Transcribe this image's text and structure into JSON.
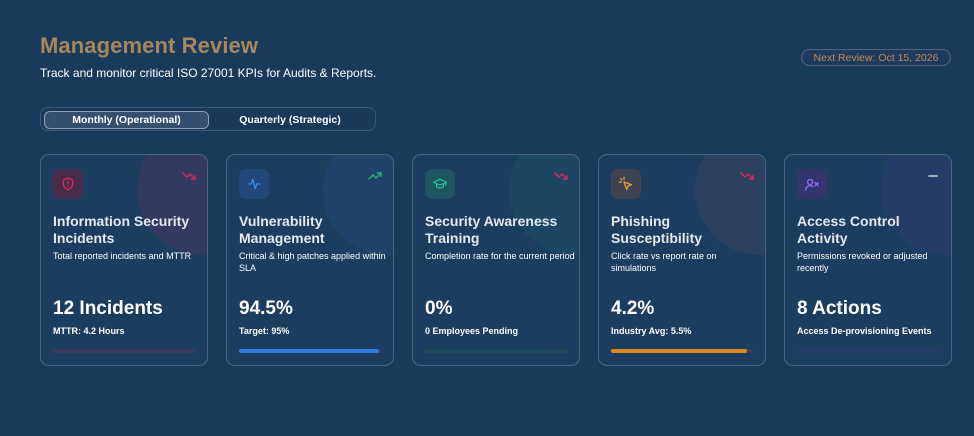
{
  "header": {
    "title": "Management Review",
    "subtitle": "Track and monitor critical ISO 27001 KPIs for Audits & Reports.",
    "next_review": "Next Review: Oct 15, 2026"
  },
  "tabs": [
    {
      "label": "Monthly (Operational)",
      "active": true
    },
    {
      "label": "Quarterly (Strategic)",
      "active": false
    }
  ],
  "cards": [
    {
      "title": "Information Security Incidents",
      "description": "Total reported incidents and MTTR",
      "value": "12 Incidents",
      "sub": "MTTR: 4.2 Hours",
      "icon": "shield-icon",
      "trend": "trend-down-icon",
      "accent": "#e0245e",
      "progress": 0
    },
    {
      "title": "Vulnerability Management",
      "description": "Critical & high patches applied within SLA",
      "value": "94.5%",
      "sub": "Target: 95%",
      "icon": "activity-icon",
      "trend": "trend-up-icon",
      "accent": "#2f7de1",
      "progress": 0.985
    },
    {
      "title": "Security Awareness Training",
      "description": "Completion rate for the current period",
      "value": "0%",
      "sub": "0 Employees Pending",
      "icon": "graduation-cap-icon",
      "trend": "trend-down-icon",
      "accent": "#1aa88a",
      "progress": 0
    },
    {
      "title": "Phishing Susceptibility",
      "description": "Click rate vs report rate on simulations",
      "value": "4.2%",
      "sub": "Industry Avg: 5.5%",
      "icon": "cursor-click-icon",
      "trend": "trend-down-icon",
      "accent": "#e08a1e",
      "progress": 0.955
    },
    {
      "title": "Access Control Activity",
      "description": "Permissions revoked or adjusted recently",
      "value": "8 Actions",
      "sub": "Access De-provisioning Events",
      "icon": "user-x-icon",
      "trend": "dash-icon",
      "accent": "#8a5cf0",
      "progress": 0
    }
  ],
  "colors": {
    "background": "#1a3a5c",
    "title": "#a8875a",
    "badge_text": "#c08a5c",
    "trend_down": "#e0245e",
    "trend_up": "#1fb57a"
  }
}
